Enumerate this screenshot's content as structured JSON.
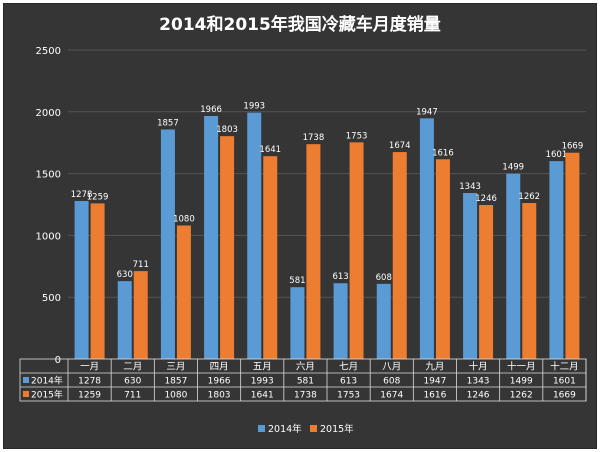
{
  "chart_data": {
    "type": "bar",
    "title": "2014和2015年我国冷藏车月度销量",
    "categories": [
      "一月",
      "二月",
      "三月",
      "四月",
      "五月",
      "六月",
      "七月",
      "八月",
      "九月",
      "十月",
      "十一月",
      "十二月"
    ],
    "series": [
      {
        "name": "2014年",
        "color": "#5b9bd5",
        "values": [
          1278,
          630,
          1857,
          1966,
          1993,
          581,
          613,
          608,
          1947,
          1343,
          1499,
          1601
        ]
      },
      {
        "name": "2015年",
        "color": "#ed7d31",
        "values": [
          1259,
          711,
          1080,
          1803,
          1641,
          1738,
          1753,
          1674,
          1616,
          1246,
          1262,
          1669
        ]
      }
    ],
    "ylim": [
      0,
      2500
    ],
    "yticks": [
      0,
      500,
      1000,
      1500,
      2000,
      2500
    ],
    "grid": true,
    "legend": "bottom",
    "data_table": true
  },
  "colors": {
    "background": "#353535",
    "text": "#ffffff",
    "grid": "#555555"
  }
}
